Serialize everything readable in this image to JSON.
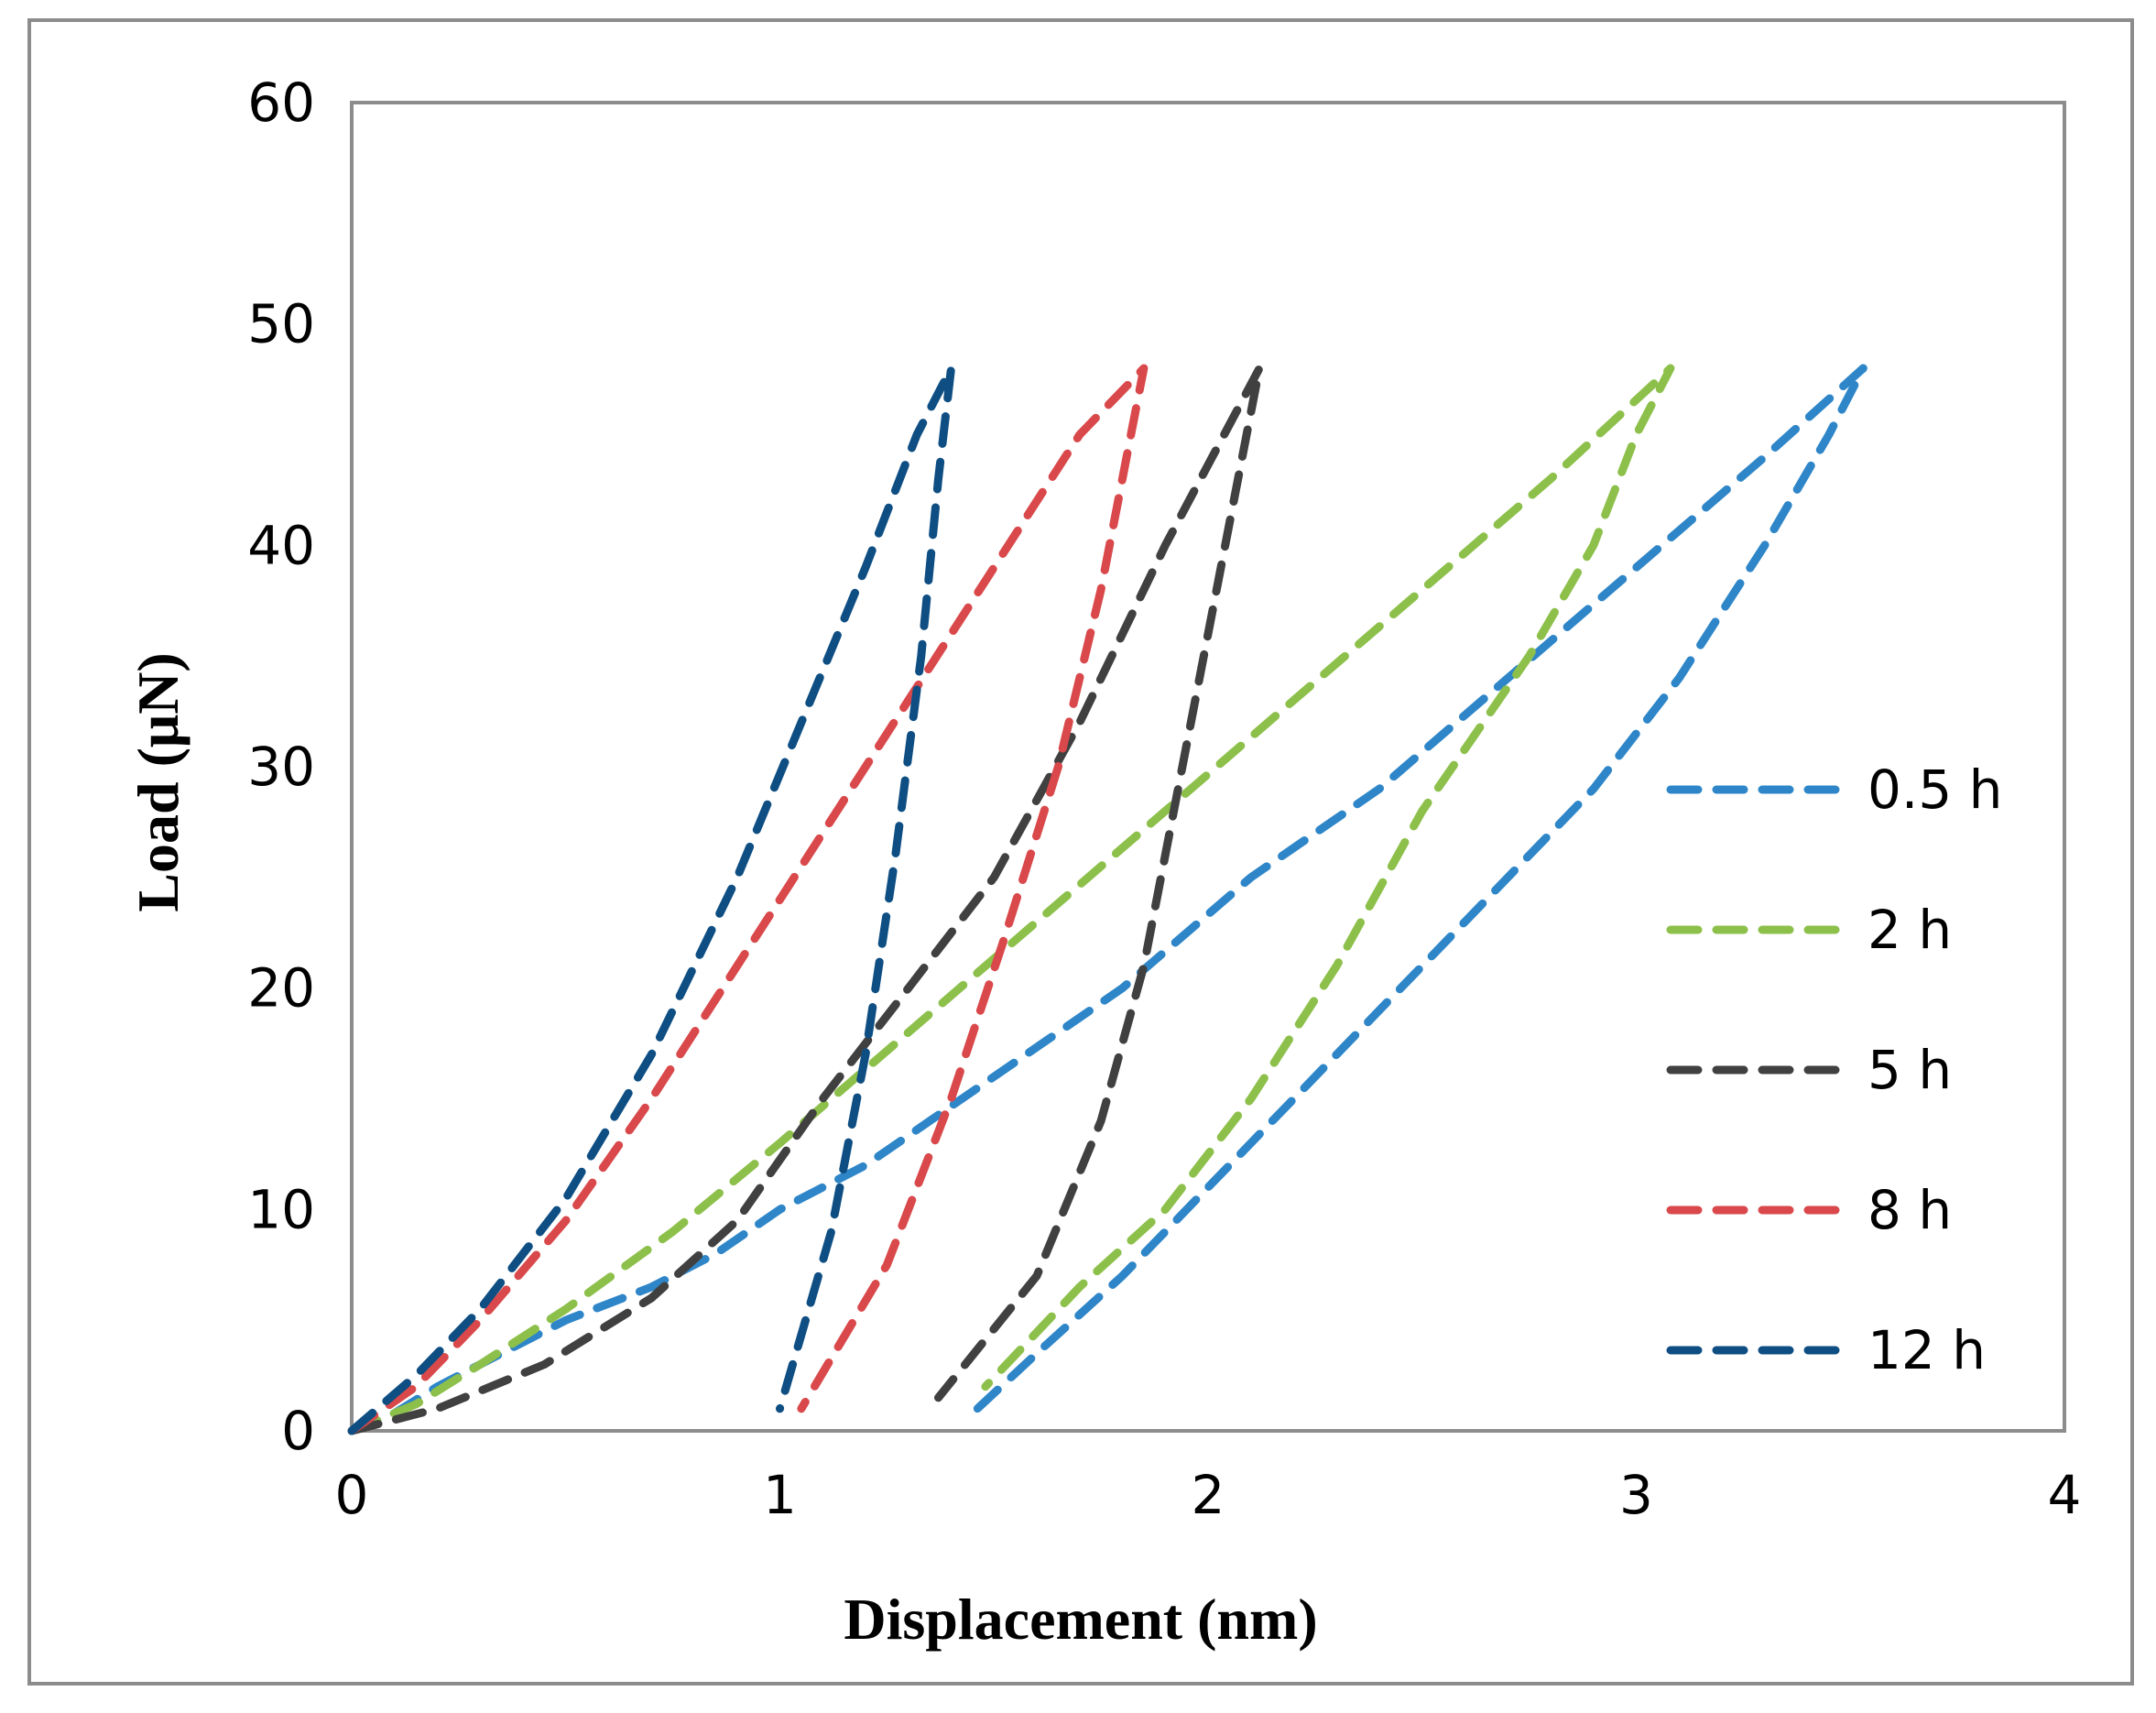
{
  "chart_data": {
    "type": "line",
    "title": "",
    "xlabel": "Displacement (nm)",
    "ylabel": "Load (μN)",
    "xlim": [
      0,
      4
    ],
    "ylim": [
      0,
      60
    ],
    "xticks": [
      "0",
      "1",
      "2",
      "3",
      "4"
    ],
    "yticks": [
      "0",
      "10",
      "20",
      "30",
      "40",
      "50",
      "60"
    ],
    "grid": false,
    "legend_position": "right",
    "series": [
      {
        "name": "0.5 h",
        "color": "#2e86c8",
        "x": [
          0,
          0.1,
          0.2,
          0.35,
          0.5,
          0.7,
          0.85,
          1.0,
          1.2,
          1.5,
          1.8,
          2.1,
          2.4,
          2.7,
          3.0,
          3.3,
          3.53,
          3.45,
          3.3,
          3.1,
          2.9,
          2.6,
          2.3,
          2.0,
          1.8,
          1.6,
          1.45
        ],
        "y": [
          0,
          0.8,
          2,
          3.5,
          5,
          6.5,
          8,
          10,
          12,
          16,
          20,
          25,
          29,
          34,
          39,
          44,
          48,
          45,
          40,
          34,
          29,
          23,
          17,
          11,
          7,
          3.5,
          0.8
        ]
      },
      {
        "name": "2 h",
        "color": "#8dc04b",
        "x": [
          0,
          0.15,
          0.3,
          0.5,
          0.75,
          1.0,
          1.3,
          1.6,
          1.9,
          2.2,
          2.5,
          2.8,
          3.08,
          3.0,
          2.9,
          2.75,
          2.5,
          2.3,
          2.1,
          1.9,
          1.7,
          1.48
        ],
        "y": [
          0,
          1.2,
          3,
          5.5,
          9,
          13,
          18,
          23,
          28,
          33,
          38,
          43,
          48,
          45,
          40,
          35,
          28,
          21,
          15,
          10,
          6.5,
          2
        ]
      },
      {
        "name": "5 h",
        "color": "#404040",
        "x": [
          0,
          0.2,
          0.45,
          0.7,
          0.9,
          1.1,
          1.3,
          1.5,
          1.7,
          1.9,
          2.12,
          2.08,
          2.0,
          1.92,
          1.85,
          1.75,
          1.6,
          1.37
        ],
        "y": [
          0,
          1,
          3,
          6,
          9.5,
          15,
          20,
          25,
          32,
          40,
          48,
          44,
          36,
          28,
          21,
          14,
          7,
          1.5
        ]
      },
      {
        "name": "8 h",
        "color": "#d9484a",
        "x": [
          0,
          0.15,
          0.3,
          0.5,
          0.7,
          0.9,
          1.1,
          1.3,
          1.5,
          1.7,
          1.85,
          1.82,
          1.75,
          1.65,
          1.52,
          1.4,
          1.25,
          1.05
        ],
        "y": [
          0,
          2,
          5,
          9.5,
          15,
          21,
          27,
          33,
          39,
          45,
          48,
          45,
          38,
          30,
          22,
          15,
          7.5,
          1
        ]
      },
      {
        "name": "12 h",
        "color": "#0e4e83",
        "x": [
          0,
          0.15,
          0.3,
          0.5,
          0.7,
          0.9,
          1.05,
          1.2,
          1.32,
          1.4,
          1.37,
          1.33,
          1.27,
          1.2,
          1.12,
          1.0
        ],
        "y": [
          0,
          2.5,
          5.5,
          10.5,
          17,
          25,
          32,
          39,
          45,
          48,
          43,
          35,
          26,
          17,
          9,
          1
        ]
      }
    ]
  }
}
